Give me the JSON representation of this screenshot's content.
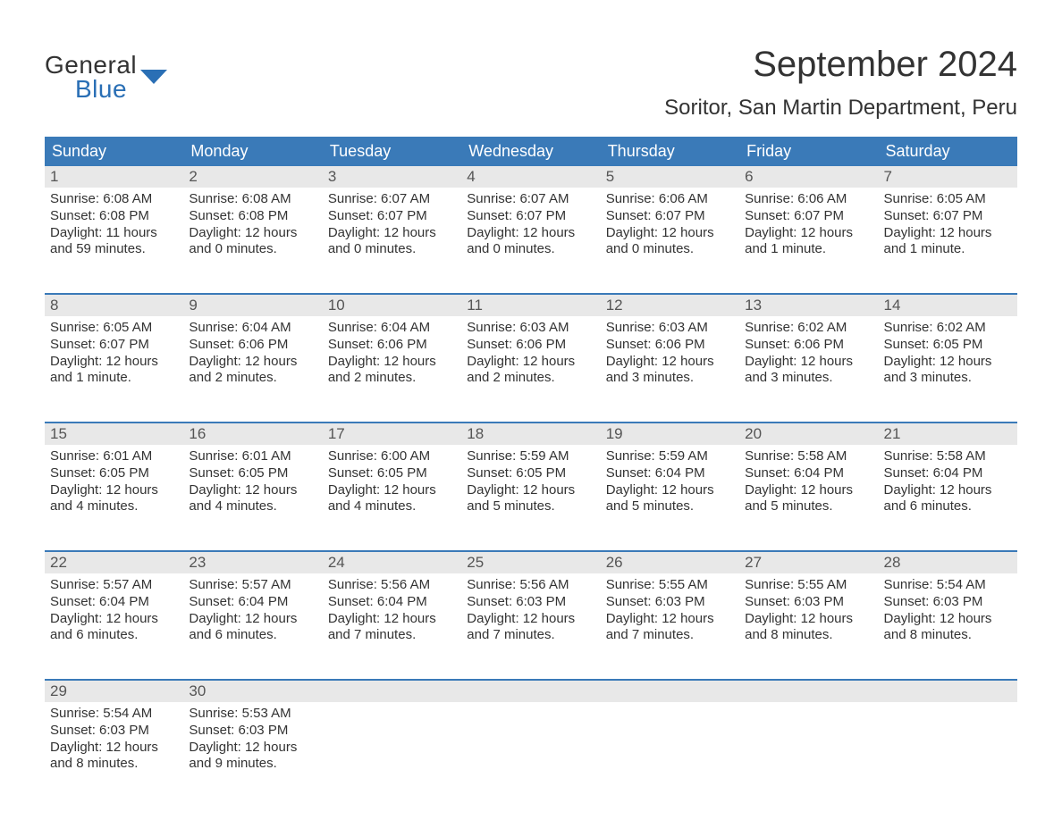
{
  "colors": {
    "header_bg": "#3a7ab8",
    "header_text": "#ffffff",
    "daynum_bg": "#e8e8e8",
    "daynum_text": "#555555",
    "body_text": "#333333",
    "logo_blue": "#2a6fb5",
    "week_divider": "#3a7ab8",
    "page_bg": "#ffffff"
  },
  "typography": {
    "title_fontsize": 40,
    "location_fontsize": 24,
    "dayheader_fontsize": 18,
    "daynum_fontsize": 17,
    "cell_fontsize": 15,
    "logo_fontsize": 28
  },
  "logo": {
    "line1": "General",
    "line2": "Blue"
  },
  "title": "September 2024",
  "location": "Soritor, San Martin Department, Peru",
  "day_headers": [
    "Sunday",
    "Monday",
    "Tuesday",
    "Wednesday",
    "Thursday",
    "Friday",
    "Saturday"
  ],
  "weeks": [
    [
      {
        "n": "1",
        "sr": "Sunrise: 6:08 AM",
        "ss": "Sunset: 6:08 PM",
        "dl": "Daylight: 11 hours and 59 minutes."
      },
      {
        "n": "2",
        "sr": "Sunrise: 6:08 AM",
        "ss": "Sunset: 6:08 PM",
        "dl": "Daylight: 12 hours and 0 minutes."
      },
      {
        "n": "3",
        "sr": "Sunrise: 6:07 AM",
        "ss": "Sunset: 6:07 PM",
        "dl": "Daylight: 12 hours and 0 minutes."
      },
      {
        "n": "4",
        "sr": "Sunrise: 6:07 AM",
        "ss": "Sunset: 6:07 PM",
        "dl": "Daylight: 12 hours and 0 minutes."
      },
      {
        "n": "5",
        "sr": "Sunrise: 6:06 AM",
        "ss": "Sunset: 6:07 PM",
        "dl": "Daylight: 12 hours and 0 minutes."
      },
      {
        "n": "6",
        "sr": "Sunrise: 6:06 AM",
        "ss": "Sunset: 6:07 PM",
        "dl": "Daylight: 12 hours and 1 minute."
      },
      {
        "n": "7",
        "sr": "Sunrise: 6:05 AM",
        "ss": "Sunset: 6:07 PM",
        "dl": "Daylight: 12 hours and 1 minute."
      }
    ],
    [
      {
        "n": "8",
        "sr": "Sunrise: 6:05 AM",
        "ss": "Sunset: 6:07 PM",
        "dl": "Daylight: 12 hours and 1 minute."
      },
      {
        "n": "9",
        "sr": "Sunrise: 6:04 AM",
        "ss": "Sunset: 6:06 PM",
        "dl": "Daylight: 12 hours and 2 minutes."
      },
      {
        "n": "10",
        "sr": "Sunrise: 6:04 AM",
        "ss": "Sunset: 6:06 PM",
        "dl": "Daylight: 12 hours and 2 minutes."
      },
      {
        "n": "11",
        "sr": "Sunrise: 6:03 AM",
        "ss": "Sunset: 6:06 PM",
        "dl": "Daylight: 12 hours and 2 minutes."
      },
      {
        "n": "12",
        "sr": "Sunrise: 6:03 AM",
        "ss": "Sunset: 6:06 PM",
        "dl": "Daylight: 12 hours and 3 minutes."
      },
      {
        "n": "13",
        "sr": "Sunrise: 6:02 AM",
        "ss": "Sunset: 6:06 PM",
        "dl": "Daylight: 12 hours and 3 minutes."
      },
      {
        "n": "14",
        "sr": "Sunrise: 6:02 AM",
        "ss": "Sunset: 6:05 PM",
        "dl": "Daylight: 12 hours and 3 minutes."
      }
    ],
    [
      {
        "n": "15",
        "sr": "Sunrise: 6:01 AM",
        "ss": "Sunset: 6:05 PM",
        "dl": "Daylight: 12 hours and 4 minutes."
      },
      {
        "n": "16",
        "sr": "Sunrise: 6:01 AM",
        "ss": "Sunset: 6:05 PM",
        "dl": "Daylight: 12 hours and 4 minutes."
      },
      {
        "n": "17",
        "sr": "Sunrise: 6:00 AM",
        "ss": "Sunset: 6:05 PM",
        "dl": "Daylight: 12 hours and 4 minutes."
      },
      {
        "n": "18",
        "sr": "Sunrise: 5:59 AM",
        "ss": "Sunset: 6:05 PM",
        "dl": "Daylight: 12 hours and 5 minutes."
      },
      {
        "n": "19",
        "sr": "Sunrise: 5:59 AM",
        "ss": "Sunset: 6:04 PM",
        "dl": "Daylight: 12 hours and 5 minutes."
      },
      {
        "n": "20",
        "sr": "Sunrise: 5:58 AM",
        "ss": "Sunset: 6:04 PM",
        "dl": "Daylight: 12 hours and 5 minutes."
      },
      {
        "n": "21",
        "sr": "Sunrise: 5:58 AM",
        "ss": "Sunset: 6:04 PM",
        "dl": "Daylight: 12 hours and 6 minutes."
      }
    ],
    [
      {
        "n": "22",
        "sr": "Sunrise: 5:57 AM",
        "ss": "Sunset: 6:04 PM",
        "dl": "Daylight: 12 hours and 6 minutes."
      },
      {
        "n": "23",
        "sr": "Sunrise: 5:57 AM",
        "ss": "Sunset: 6:04 PM",
        "dl": "Daylight: 12 hours and 6 minutes."
      },
      {
        "n": "24",
        "sr": "Sunrise: 5:56 AM",
        "ss": "Sunset: 6:04 PM",
        "dl": "Daylight: 12 hours and 7 minutes."
      },
      {
        "n": "25",
        "sr": "Sunrise: 5:56 AM",
        "ss": "Sunset: 6:03 PM",
        "dl": "Daylight: 12 hours and 7 minutes."
      },
      {
        "n": "26",
        "sr": "Sunrise: 5:55 AM",
        "ss": "Sunset: 6:03 PM",
        "dl": "Daylight: 12 hours and 7 minutes."
      },
      {
        "n": "27",
        "sr": "Sunrise: 5:55 AM",
        "ss": "Sunset: 6:03 PM",
        "dl": "Daylight: 12 hours and 8 minutes."
      },
      {
        "n": "28",
        "sr": "Sunrise: 5:54 AM",
        "ss": "Sunset: 6:03 PM",
        "dl": "Daylight: 12 hours and 8 minutes."
      }
    ],
    [
      {
        "n": "29",
        "sr": "Sunrise: 5:54 AM",
        "ss": "Sunset: 6:03 PM",
        "dl": "Daylight: 12 hours and 8 minutes."
      },
      {
        "n": "30",
        "sr": "Sunrise: 5:53 AM",
        "ss": "Sunset: 6:03 PM",
        "dl": "Daylight: 12 hours and 9 minutes."
      },
      null,
      null,
      null,
      null,
      null
    ]
  ]
}
